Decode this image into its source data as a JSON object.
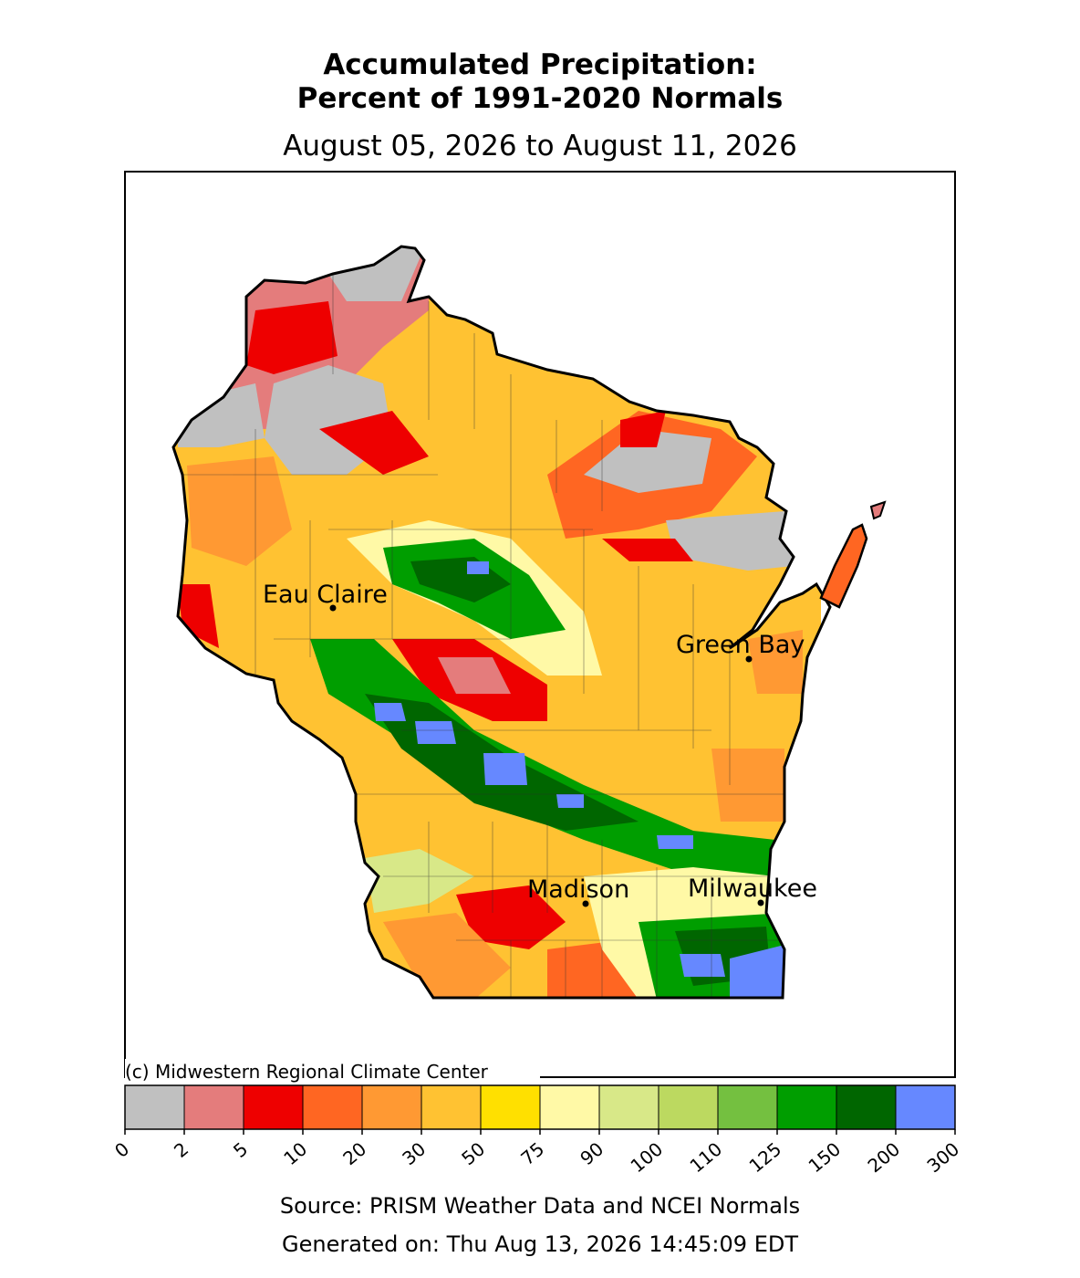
{
  "title_line1": "Accumulated Precipitation:",
  "title_line2": "Percent of 1991-2020 Normals",
  "date_range": "August 05, 2026 to August 11, 2026",
  "copyright": "(c) Midwestern Regional Climate Center",
  "cities": [
    {
      "name": "Eau Claire"
    },
    {
      "name": "Green Bay"
    },
    {
      "name": "Madison"
    },
    {
      "name": "Milwaukee"
    }
  ],
  "legend": {
    "ticks": [
      "0",
      "2",
      "5",
      "10",
      "20",
      "30",
      "50",
      "75",
      "90",
      "100",
      "110",
      "125",
      "150",
      "200",
      "300"
    ],
    "colors": [
      "#c0c0c0",
      "#e47c7c",
      "#ee0000",
      "#ff6622",
      "#ff9933",
      "#ffc232",
      "#ffe000",
      "#fff9a6",
      "#d8e888",
      "#bcd960",
      "#74c040",
      "#009e00",
      "#006600",
      "#6688ff"
    ]
  },
  "source": "Source: PRISM Weather Data and NCEI Normals",
  "generated": "Generated on: Thu Aug 13, 2026 14:45:09 EDT"
}
